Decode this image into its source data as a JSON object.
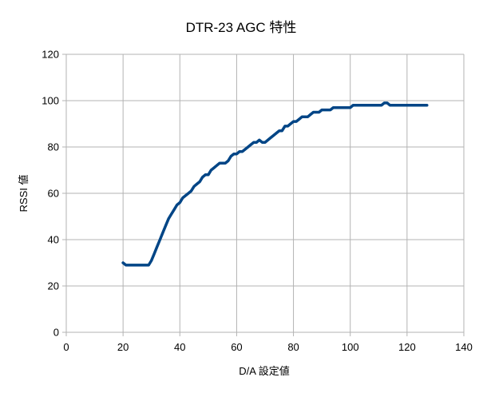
{
  "chart_data": {
    "type": "line",
    "title": "DTR-23 AGC 特性",
    "xlabel": "D/A 設定値",
    "ylabel": "RSSI 値",
    "xlim": [
      0,
      140
    ],
    "ylim": [
      0,
      120
    ],
    "xticks": [
      0,
      20,
      40,
      60,
      80,
      100,
      120,
      140
    ],
    "yticks": [
      0,
      20,
      40,
      60,
      80,
      100,
      120
    ],
    "grid": true,
    "legend": "none",
    "series": [
      {
        "color": "#004586",
        "points": [
          [
            20,
            30
          ],
          [
            21,
            29
          ],
          [
            22,
            29
          ],
          [
            24,
            29
          ],
          [
            26,
            29
          ],
          [
            28,
            29
          ],
          [
            29,
            29
          ],
          [
            30,
            31
          ],
          [
            31,
            34
          ],
          [
            32,
            37
          ],
          [
            33,
            40
          ],
          [
            34,
            43
          ],
          [
            35,
            46
          ],
          [
            36,
            49
          ],
          [
            37,
            51
          ],
          [
            38,
            53
          ],
          [
            39,
            55
          ],
          [
            40,
            56
          ],
          [
            41,
            58
          ],
          [
            42,
            59
          ],
          [
            43,
            60
          ],
          [
            44,
            61
          ],
          [
            45,
            63
          ],
          [
            46,
            64
          ],
          [
            47,
            65
          ],
          [
            48,
            67
          ],
          [
            49,
            68
          ],
          [
            50,
            68
          ],
          [
            51,
            70
          ],
          [
            52,
            71
          ],
          [
            53,
            72
          ],
          [
            54,
            73
          ],
          [
            55,
            73
          ],
          [
            56,
            73
          ],
          [
            57,
            74
          ],
          [
            58,
            76
          ],
          [
            59,
            77
          ],
          [
            60,
            77
          ],
          [
            61,
            78
          ],
          [
            62,
            78
          ],
          [
            63,
            79
          ],
          [
            64,
            80
          ],
          [
            65,
            81
          ],
          [
            66,
            82
          ],
          [
            67,
            82
          ],
          [
            68,
            83
          ],
          [
            69,
            82
          ],
          [
            70,
            82
          ],
          [
            71,
            83
          ],
          [
            72,
            84
          ],
          [
            73,
            85
          ],
          [
            74,
            86
          ],
          [
            75,
            87
          ],
          [
            76,
            87
          ],
          [
            77,
            89
          ],
          [
            78,
            89
          ],
          [
            79,
            90
          ],
          [
            80,
            91
          ],
          [
            81,
            91
          ],
          [
            82,
            92
          ],
          [
            83,
            93
          ],
          [
            84,
            93
          ],
          [
            85,
            93
          ],
          [
            86,
            94
          ],
          [
            87,
            95
          ],
          [
            88,
            95
          ],
          [
            89,
            95
          ],
          [
            90,
            96
          ],
          [
            91,
            96
          ],
          [
            92,
            96
          ],
          [
            93,
            96
          ],
          [
            94,
            97
          ],
          [
            95,
            97
          ],
          [
            96,
            97
          ],
          [
            97,
            97
          ],
          [
            98,
            97
          ],
          [
            99,
            97
          ],
          [
            100,
            97
          ],
          [
            101,
            98
          ],
          [
            102,
            98
          ],
          [
            104,
            98
          ],
          [
            106,
            98
          ],
          [
            108,
            98
          ],
          [
            110,
            98
          ],
          [
            111,
            98
          ],
          [
            112,
            99
          ],
          [
            113,
            99
          ],
          [
            114,
            98
          ],
          [
            116,
            98
          ],
          [
            118,
            98
          ],
          [
            120,
            98
          ],
          [
            122,
            98
          ],
          [
            124,
            98
          ],
          [
            126,
            98
          ],
          [
            127,
            98
          ]
        ]
      }
    ]
  }
}
